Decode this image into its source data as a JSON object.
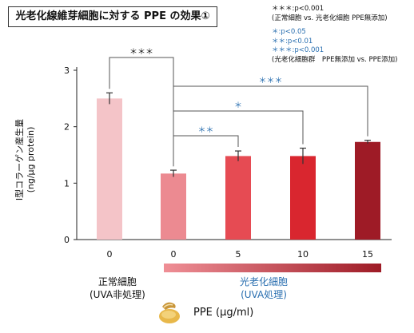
{
  "title": "光老化線維芽細胞に対する PPE の効果①",
  "legend": {
    "line1": "＊＊＊:p<0.001",
    "line2": "(正常細胞 vs. 光老化細胞 PPE無添加)",
    "line3": "＊:p<0.05",
    "line4": "＊＊:p<0.01",
    "line5": "＊＊＊:p<0.001",
    "line6": "(光老化細胞群　PPE無添加 vs. PPE添加)"
  },
  "groups": {
    "normal_line1": "正常細胞",
    "normal_line2": "(UVA非処理)",
    "photo_line1": "光老化細胞",
    "photo_line2": "(UVA処理)"
  },
  "xlabel": "PPE (μg/ml)",
  "colors": {
    "blue": "#2a6fb0",
    "black": "#111111"
  },
  "chart_data": {
    "type": "bar",
    "categories": [
      "0",
      "0",
      "5",
      "10",
      "15"
    ],
    "values": [
      2.5,
      1.17,
      1.48,
      1.48,
      1.73
    ],
    "errors": [
      0.1,
      0.06,
      0.09,
      0.14,
      0.03
    ],
    "bar_colors": [
      "#f4c4c8",
      "#ec8a91",
      "#e64b53",
      "#d9262f",
      "#9e1b26"
    ],
    "ylabel_line1": "I型コラーゲン産生量",
    "ylabel_line2": "(ng/μg protein)",
    "ylim": [
      0,
      3
    ],
    "yticks": [
      0,
      1,
      2,
      3
    ],
    "significance": [
      {
        "from": 0,
        "to": 1,
        "label": "＊＊＊",
        "color": "#111111"
      },
      {
        "from": 1,
        "to": 2,
        "label": "＊＊",
        "color": "#2a6fb0"
      },
      {
        "from": 1,
        "to": 3,
        "label": "＊",
        "color": "#2a6fb0"
      },
      {
        "from": 1,
        "to": 4,
        "label": "＊＊＊",
        "color": "#2a6fb0"
      }
    ]
  }
}
